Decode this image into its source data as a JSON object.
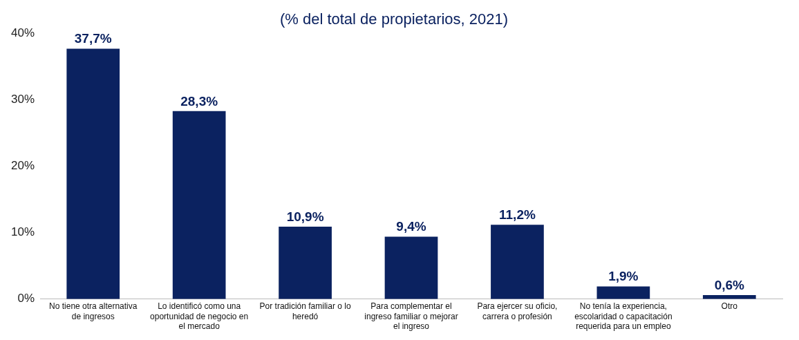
{
  "chart_data": {
    "type": "bar",
    "subtitle": "(% del total de propietarios, 2021)",
    "categories": [
      "No tiene otra alternativa de ingresos",
      "Lo identificó como una oportunidad de negocio en el mercado",
      "Por tradición familiar o lo heredó",
      "Para complementar el ingreso familiar o mejorar el ingreso",
      "Para ejercer su oficio, carrera o profesión",
      "No tenía la experiencia, escolaridad o capacitación requerida para un empleo",
      "Otro"
    ],
    "values": [
      37.7,
      28.3,
      10.9,
      9.4,
      11.2,
      1.9,
      0.6
    ],
    "value_labels": [
      "37,7%",
      "28,3%",
      "10,9%",
      "9,4%",
      "11,2%",
      "1,9%",
      "0,6%"
    ],
    "color": "#0b2260",
    "ylim": [
      0,
      40
    ],
    "yticks": [
      {
        "value": 0,
        "label": "0%"
      },
      {
        "value": 10,
        "label": "10%"
      },
      {
        "value": 20,
        "label": "20%"
      },
      {
        "value": 30,
        "label": "30%"
      },
      {
        "value": 40,
        "label": "40%"
      }
    ],
    "grid": false,
    "legend": false
  }
}
